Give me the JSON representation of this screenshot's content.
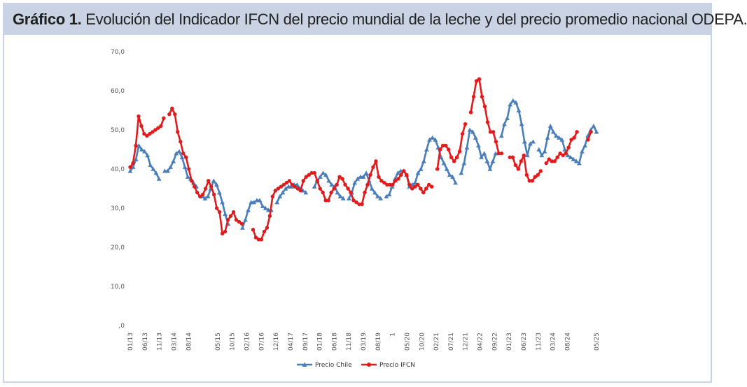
{
  "header": {
    "title_bold": "Gráfico 1.",
    "title_rest": "Evolución del Indicador IFCN del precio mundial de la leche y del precio promedio nacional ODEPA."
  },
  "chart_data": {
    "type": "line",
    "title": "Gráfico 1. Evolución del Indicador IFCN del precio mundial de la leche y del precio promedio nacional ODEPA.",
    "xlabel": "",
    "ylabel": "",
    "ylim": [
      0,
      70
    ],
    "yticks": [
      ",0",
      "10,0",
      "20,0",
      "30,0",
      "40,0",
      "50,0",
      "60,0",
      "70,0"
    ],
    "xticks": [
      "01/13",
      "06/13",
      "11/13",
      "03/14",
      "08/14",
      "",
      "05/15",
      "10/15",
      "02/16",
      "07/16",
      "12/16",
      "04/17",
      "09/17",
      "01/18",
      "06/18",
      "11/18",
      "03/19",
      "08/19",
      "1",
      "05/20",
      "10/20",
      "02/21",
      "07/21",
      "12/21",
      "04/22",
      "09/22",
      "01/23",
      "06/23",
      "11/23",
      "03/24",
      "08/24",
      "",
      "05/25"
    ],
    "grid": false,
    "legend": "bottom",
    "series": [
      {
        "name": "Precio Chile",
        "color": "#4a7ebb",
        "marker": "triangle",
        "values": [
          39.5,
          40.5,
          42.5,
          46,
          45,
          44.5,
          43.5,
          41,
          40,
          39,
          37.5,
          null,
          39.5,
          39.5,
          40.5,
          42,
          44,
          44.5,
          43,
          40.5,
          38,
          37.5,
          36.5,
          35.5,
          null,
          33,
          32.5,
          33,
          35,
          37,
          36,
          34,
          31.5,
          28.5,
          26,
          null,
          null,
          null,
          null,
          25,
          27,
          29.5,
          31.5,
          31.5,
          32,
          32,
          30.5,
          30,
          29.5,
          29.5,
          null,
          31.5,
          33,
          34,
          35,
          35.5,
          35.5,
          36,
          36,
          35,
          34.5,
          34,
          null,
          null,
          35.5,
          37,
          38,
          39,
          38.5,
          37,
          36,
          35.5,
          34,
          33,
          32.5,
          null,
          32.5,
          34,
          36.5,
          37.5,
          38,
          38,
          39,
          37,
          35,
          34,
          33,
          32.5,
          null,
          33,
          33.5,
          35.5,
          37.5,
          39,
          39.5,
          39.5,
          38.5,
          35.5,
          36,
          36.5,
          39,
          40,
          42,
          45,
          47.5,
          48,
          47.5,
          45.5,
          43,
          41.5,
          40,
          38.5,
          38,
          36.5,
          null,
          39,
          41.5,
          45.5,
          50,
          49.5,
          48,
          46,
          43,
          44,
          42,
          40,
          42,
          44,
          null,
          48.5,
          51.5,
          53,
          56.5,
          57.5,
          57,
          55,
          51.5,
          47,
          43.5,
          46.5,
          47,
          null,
          45,
          43.5,
          44.5,
          48,
          51,
          49.5,
          48.5,
          48,
          47.5,
          45,
          43.5,
          43,
          42.5,
          42,
          41.5,
          44.5,
          46,
          48.5,
          50,
          51,
          49.5
        ]
      },
      {
        "name": "Precio IFCN",
        "color": "#e31a1c",
        "marker": "circle",
        "values": [
          40.5,
          41.5,
          46,
          53.5,
          51,
          49,
          48.5,
          49,
          49.5,
          50,
          50.5,
          51,
          53,
          null,
          54,
          55.5,
          54,
          49.5,
          47,
          44,
          43,
          40,
          37,
          35.5,
          34,
          33,
          33.5,
          35,
          37,
          35.5,
          33.5,
          30,
          29,
          23.5,
          24,
          27,
          28,
          29,
          27,
          26.5,
          26,
          null,
          null,
          null,
          24.5,
          22.5,
          22,
          22,
          24,
          25,
          28,
          33,
          34.5,
          35,
          35.5,
          36,
          36.5,
          37,
          36,
          35.5,
          35,
          34.5,
          37,
          38,
          38.5,
          39,
          39,
          37,
          35,
          34,
          32,
          32,
          34,
          35,
          36,
          38,
          37.5,
          36,
          35,
          34,
          32,
          31.5,
          31,
          31,
          34,
          36,
          38.5,
          40.5,
          42,
          38,
          37,
          36.5,
          36,
          36,
          36,
          37,
          37.5,
          38.5,
          39.5,
          38.5,
          36,
          35,
          35.5,
          36,
          35,
          34,
          35,
          36,
          35.5,
          null,
          40,
          45,
          46,
          46,
          45,
          43,
          42,
          43,
          44.5,
          49,
          51.5,
          null,
          54.5,
          58.5,
          62.5,
          63,
          58.5,
          56,
          52,
          49.5,
          49.5,
          47,
          44,
          44,
          null,
          null,
          43,
          43,
          41,
          40,
          42,
          43.5,
          38.5,
          37,
          37,
          38,
          38.5,
          39.5,
          null,
          41.5,
          42.5,
          42,
          42,
          43,
          44,
          43.5,
          44,
          45.5,
          47.5,
          48,
          49.5,
          null,
          null,
          null,
          47.5,
          49.5,
          null,
          null
        ]
      }
    ]
  }
}
